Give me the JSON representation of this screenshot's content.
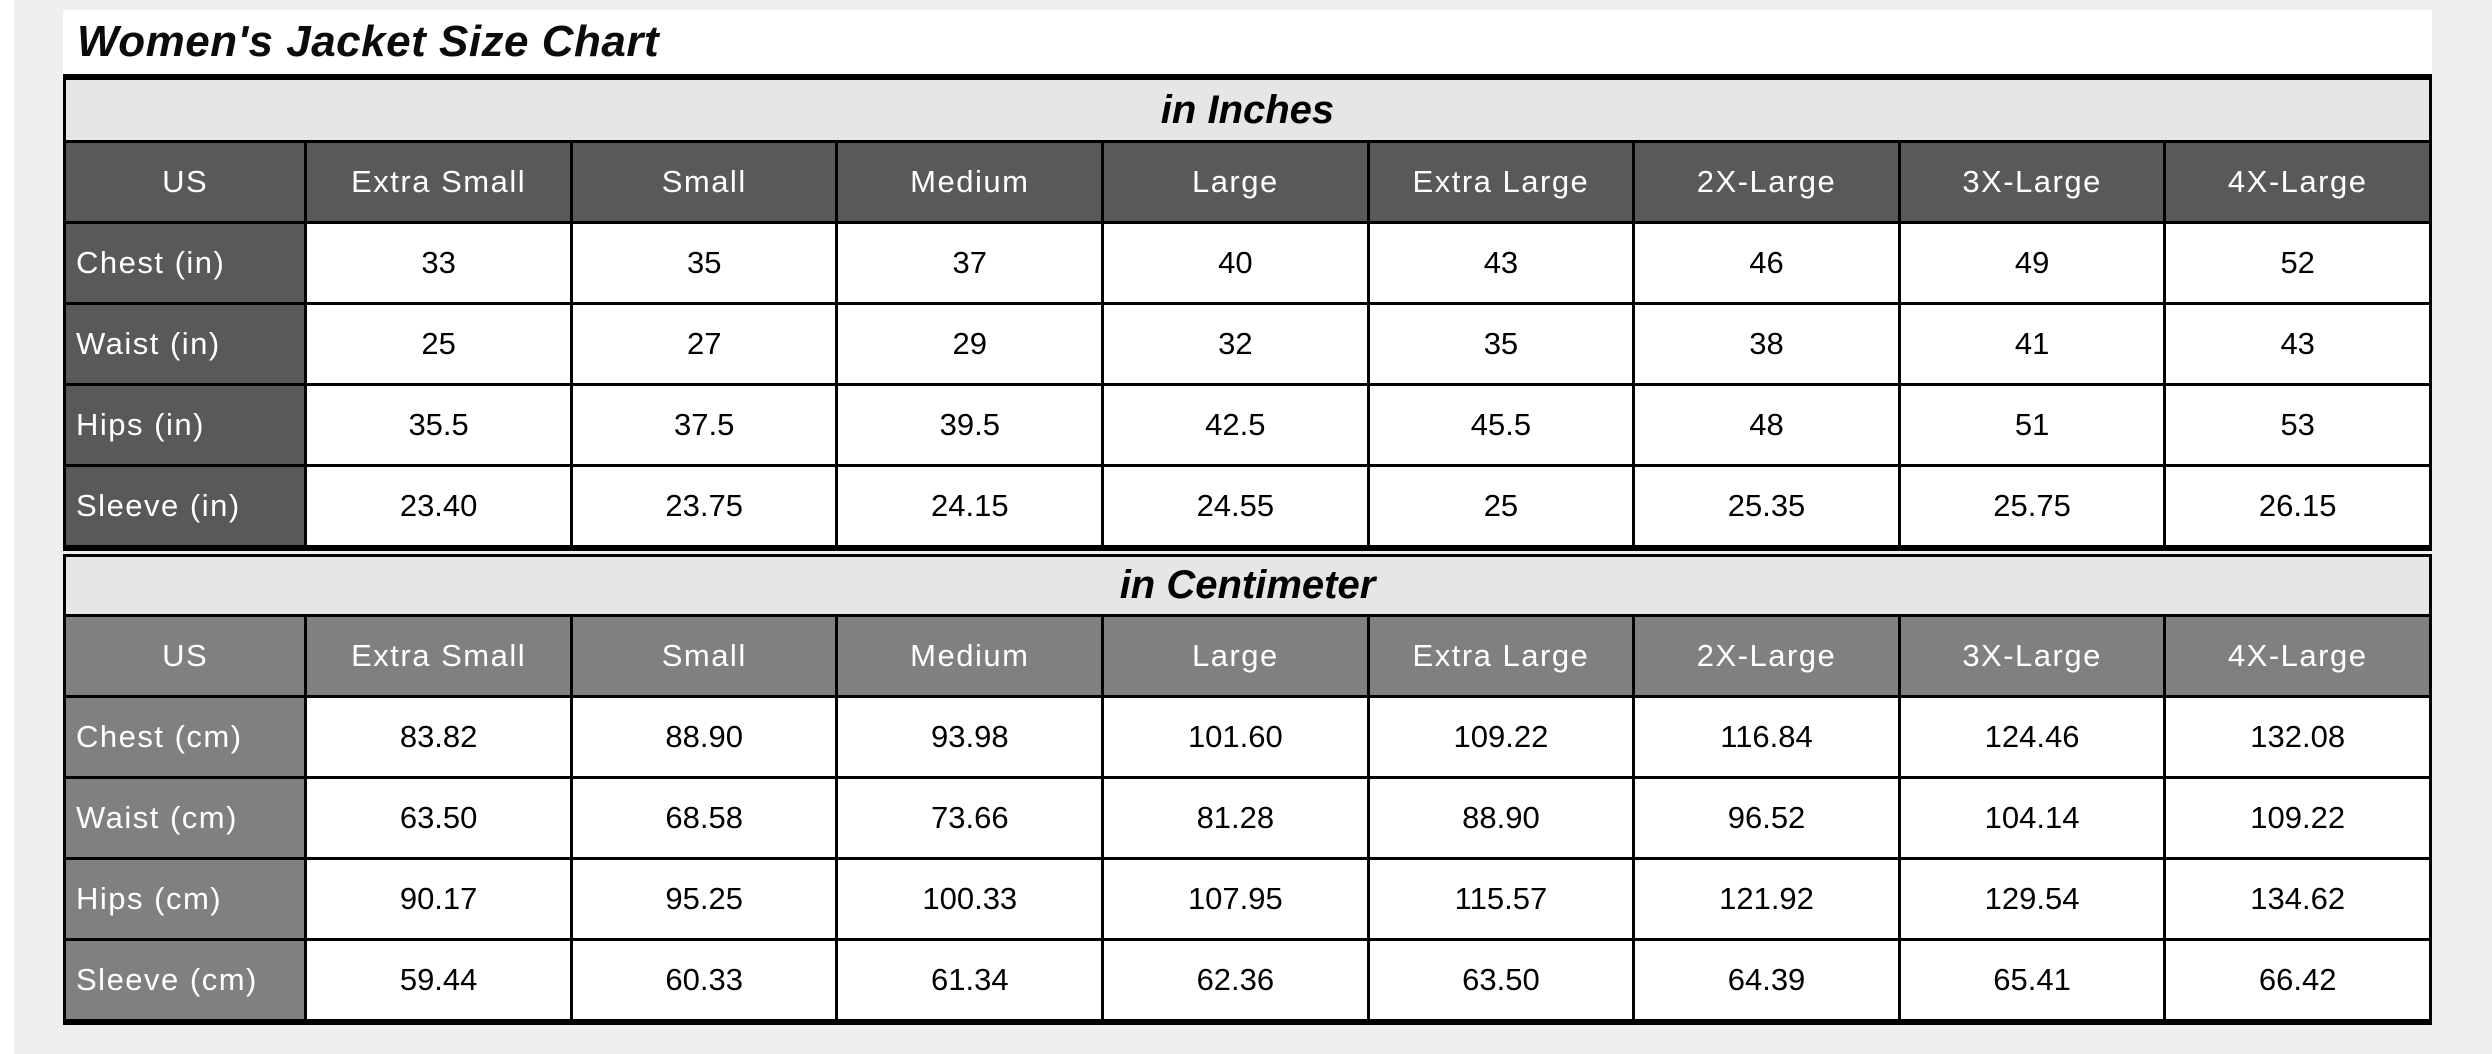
{
  "title": "Women's Jacket Size Chart",
  "colors": {
    "page_margin": "#f0efee",
    "band_bg": "#e7e6e6",
    "inches_header_bg": "#595959",
    "cm_header_bg": "#808080",
    "header_text": "#ffffff",
    "cell_bg": "#ffffff",
    "border": "#000000"
  },
  "sections": [
    {
      "heading": "in Inches",
      "corner_label": "US",
      "columns": [
        "Extra Small",
        "Small",
        "Medium",
        "Large",
        "Extra Large",
        "2X-Large",
        "3X-Large",
        "4X-Large"
      ],
      "rows": [
        {
          "label": "Chest (in)",
          "values": [
            "33",
            "35",
            "37",
            "40",
            "43",
            "46",
            "49",
            "52"
          ]
        },
        {
          "label": "Waist (in)",
          "values": [
            "25",
            "27",
            "29",
            "32",
            "35",
            "38",
            "41",
            "43"
          ]
        },
        {
          "label": "Hips (in)",
          "values": [
            "35.5",
            "37.5",
            "39.5",
            "42.5",
            "45.5",
            "48",
            "51",
            "53"
          ]
        },
        {
          "label": "Sleeve (in)",
          "values": [
            "23.40",
            "23.75",
            "24.15",
            "24.55",
            "25",
            "25.35",
            "25.75",
            "26.15"
          ]
        }
      ],
      "theme": {
        "header_bg": "#595959",
        "header_text": "#ffffff"
      }
    },
    {
      "heading": "in Centimeter",
      "corner_label": "US",
      "columns": [
        "Extra Small",
        "Small",
        "Medium",
        "Large",
        "Extra Large",
        "2X-Large",
        "3X-Large",
        "4X-Large"
      ],
      "rows": [
        {
          "label": "Chest (cm)",
          "values": [
            "83.82",
            "88.90",
            "93.98",
            "101.60",
            "109.22",
            "116.84",
            "124.46",
            "132.08"
          ]
        },
        {
          "label": "Waist (cm)",
          "values": [
            "63.50",
            "68.58",
            "73.66",
            "81.28",
            "88.90",
            "96.52",
            "104.14",
            "109.22"
          ]
        },
        {
          "label": "Hips (cm)",
          "values": [
            "90.17",
            "95.25",
            "100.33",
            "107.95",
            "115.57",
            "121.92",
            "129.54",
            "134.62"
          ]
        },
        {
          "label": "Sleeve (cm)",
          "values": [
            "59.44",
            "60.33",
            "61.34",
            "62.36",
            "63.50",
            "64.39",
            "65.41",
            "66.42"
          ]
        }
      ],
      "theme": {
        "header_bg": "#808080",
        "header_text": "#ffffff"
      }
    }
  ],
  "chart_data": [
    {
      "type": "table",
      "title": "Women's Jacket Size Chart - in Inches",
      "columns": [
        "US",
        "Extra Small",
        "Small",
        "Medium",
        "Large",
        "Extra Large",
        "2X-Large",
        "3X-Large",
        "4X-Large"
      ],
      "rows": [
        [
          "Chest (in)",
          33,
          35,
          37,
          40,
          43,
          46,
          49,
          52
        ],
        [
          "Waist (in)",
          25,
          27,
          29,
          32,
          35,
          38,
          41,
          43
        ],
        [
          "Hips (in)",
          35.5,
          37.5,
          39.5,
          42.5,
          45.5,
          48,
          51,
          53
        ],
        [
          "Sleeve (in)",
          23.4,
          23.75,
          24.15,
          24.55,
          25,
          25.35,
          25.75,
          26.15
        ]
      ]
    },
    {
      "type": "table",
      "title": "Women's Jacket Size Chart - in Centimeter",
      "columns": [
        "US",
        "Extra Small",
        "Small",
        "Medium",
        "Large",
        "Extra Large",
        "2X-Large",
        "3X-Large",
        "4X-Large"
      ],
      "rows": [
        [
          "Chest (cm)",
          83.82,
          88.9,
          93.98,
          101.6,
          109.22,
          116.84,
          124.46,
          132.08
        ],
        [
          "Waist (cm)",
          63.5,
          68.58,
          73.66,
          81.28,
          88.9,
          96.52,
          104.14,
          109.22
        ],
        [
          "Hips (cm)",
          90.17,
          95.25,
          100.33,
          107.95,
          115.57,
          121.92,
          129.54,
          134.62
        ],
        [
          "Sleeve (cm)",
          59.44,
          60.33,
          61.34,
          62.36,
          63.5,
          64.39,
          65.41,
          66.42
        ]
      ]
    }
  ]
}
